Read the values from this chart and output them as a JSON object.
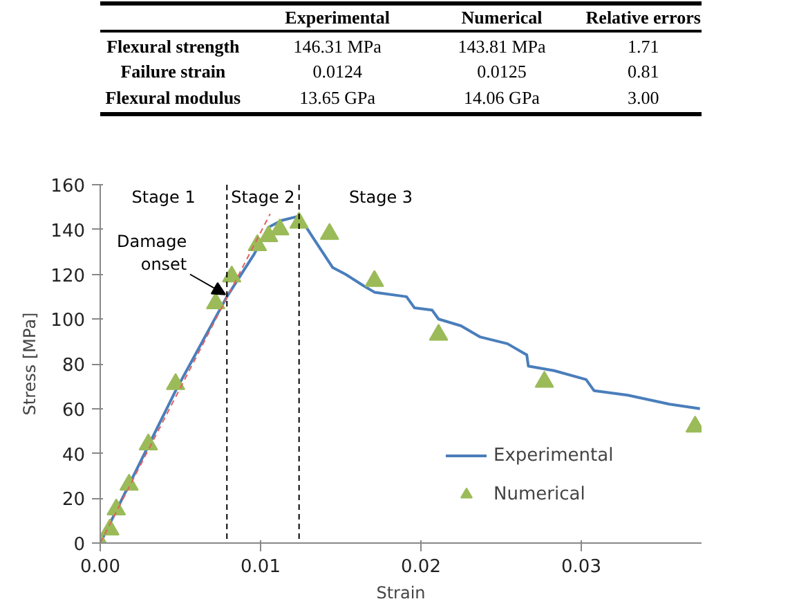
{
  "chart_data": {
    "type": "line",
    "xlabel": "Strain",
    "ylabel": "Stress [MPa]",
    "xlim": [
      0,
      0.0375
    ],
    "ylim": [
      0,
      160
    ],
    "xticks": [
      {
        "value": 0,
        "label": "0.00"
      },
      {
        "value": 0.01,
        "label": "0.01"
      },
      {
        "value": 0.02,
        "label": "0.02"
      },
      {
        "value": 0.03,
        "label": "0.03"
      }
    ],
    "yticks": [
      0,
      20,
      40,
      60,
      80,
      100,
      120,
      140,
      160
    ],
    "grid": false,
    "legend": "bottom right",
    "series": [
      {
        "name": "Experimental",
        "color": "#4a7ebb",
        "line_style": "solid",
        "x": [
          0,
          0.0047,
          0.0079,
          0.0096,
          0.0105,
          0.0113,
          0.0124,
          0.0133,
          0.0145,
          0.0153,
          0.0164,
          0.0171,
          0.0191,
          0.0196,
          0.0207,
          0.0211,
          0.0225,
          0.0237,
          0.0254,
          0.0266,
          0.0267,
          0.0283,
          0.0303,
          0.0308,
          0.0329,
          0.0355,
          0.0374
        ],
        "values": [
          0,
          68,
          110,
          129,
          141,
          144,
          146,
          136,
          123,
          120,
          115,
          112,
          110,
          105,
          104,
          100,
          97,
          92,
          89,
          84,
          79,
          77,
          73,
          68,
          66,
          62,
          60
        ]
      },
      {
        "name": "Numerical",
        "type": "scatter",
        "marker": "triangle",
        "color": "#9bbb59",
        "x": [
          0,
          0.0006,
          0.001,
          0.0018,
          0.003,
          0.0047,
          0.0072,
          0.0082,
          0.0098,
          0.0105,
          0.0112,
          0.0124,
          0.0143,
          0.0171,
          0.0211,
          0.0277,
          0.0371
        ],
        "values": [
          0,
          6,
          15,
          26,
          44,
          71,
          107,
          119,
          133,
          137,
          140,
          143,
          138,
          117,
          93,
          72,
          52
        ]
      },
      {
        "type": "line",
        "color": "#e06060",
        "line_style": "dashed",
        "x": [
          0,
          0.0106
        ],
        "values": [
          0,
          147
        ]
      }
    ],
    "ref_lines": [
      {
        "axis": "x",
        "value": 0.0079,
        "label": null,
        "color": "#000000",
        "line_style": "dashed"
      },
      {
        "axis": "x",
        "value": 0.0124,
        "label": null,
        "color": "#000000",
        "line_style": "dashed"
      }
    ],
    "annotations": [
      {
        "text": "Damage onset",
        "x": 0.0078,
        "y": 111
      },
      "Stage 1",
      "Stage 2",
      "Stage 3",
      "Experimental",
      "Numerical",
      "Relative errors",
      "Flexural strength",
      "146.31 MPa",
      "143.81 MPa",
      "1.71",
      "Failure strain",
      "0.0124",
      "0.0125",
      "0.81",
      "Flexural modulus",
      "13.65 GPa",
      "14.06 GPa",
      "3.00"
    ]
  }
}
